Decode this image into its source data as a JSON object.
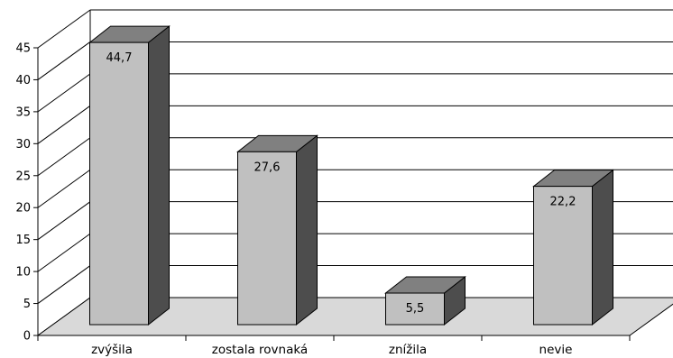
{
  "chart_data": {
    "type": "bar",
    "categories": [
      "zvýšila",
      "zostala rovnaká",
      "znížila",
      "nevie"
    ],
    "values": [
      44.7,
      27.6,
      5.5,
      22.2
    ],
    "data_labels": [
      "44,7",
      "27,6",
      "5,5",
      "22,2"
    ],
    "title": "",
    "xlabel": "",
    "ylabel": "",
    "ylim": [
      0,
      45
    ],
    "y_ticks": [
      "0",
      "5",
      "10",
      "15",
      "20",
      "25",
      "30",
      "35",
      "40",
      "45"
    ],
    "grid": true,
    "legend": "none",
    "style": "3d-column",
    "colors": {
      "bar_front": "#c0c0c0",
      "bar_top": "#808080",
      "bar_side": "#4d4d4d",
      "floor": "#d9d9d9",
      "grid": "#000000"
    }
  }
}
